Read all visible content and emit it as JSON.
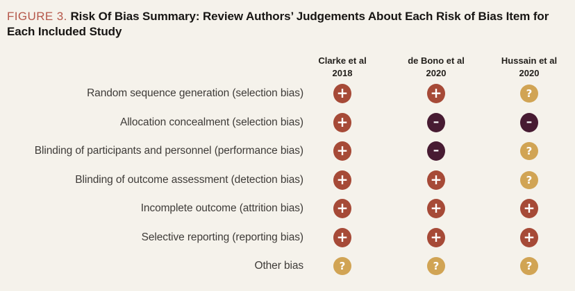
{
  "figure": {
    "label": "FIGURE 3."
  },
  "chart_data": {
    "type": "table",
    "title": "Risk Of Bias Summary: Review Authors’ Judgements About Each Risk of Bias Item for Each Included Study",
    "columns": [
      {
        "label": "Clarke et al",
        "sublabel": "2018"
      },
      {
        "label": "de Bono et al",
        "sublabel": "2020"
      },
      {
        "label": "Hussain et al",
        "sublabel": "2020"
      }
    ],
    "rows": [
      "Random sequence generation (selection bias)",
      "Allocation concealment (selection bias)",
      "Blinding of participants and personnel (performance bias)",
      "Blinding of outcome assessment (detection bias)",
      "Incomplete outcome (attrition bias)",
      "Selective reporting (reporting bias)",
      "Other bias"
    ],
    "values": [
      [
        "+",
        "+",
        "?"
      ],
      [
        "+",
        "-",
        "-"
      ],
      [
        "+",
        "-",
        "?"
      ],
      [
        "+",
        "+",
        "?"
      ],
      [
        "+",
        "+",
        "+"
      ],
      [
        "+",
        "+",
        "+"
      ],
      [
        "?",
        "?",
        "?"
      ]
    ],
    "symbol_colors": {
      "+": "#a64a37",
      "-": "#471b32",
      "?": "#d1a454"
    },
    "legend_position": "none",
    "grid": false
  },
  "colors": {
    "background": "#f5f2eb",
    "figure_label": "#b5574a",
    "title_text": "#171513",
    "header_text": "#23201c",
    "row_label_text": "#3e3b38",
    "icon_symbol": "#ffffff"
  }
}
